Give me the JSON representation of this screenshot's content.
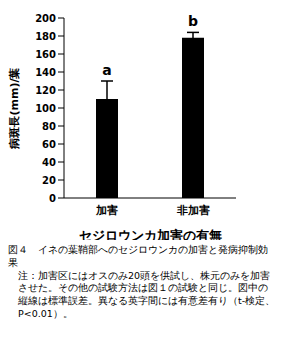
{
  "chart_data": {
    "type": "bar",
    "categories": [
      "加害",
      "非加害"
    ],
    "values": [
      110,
      178
    ],
    "errors": [
      20,
      6
    ],
    "color": "#000000",
    "annotations": [
      "a",
      "b"
    ],
    "ylabel": "病斑長(mm)/葉",
    "xlabel": "セジロウンカ加害の有無",
    "ylim": [
      0,
      200
    ],
    "yticks": [
      0,
      20,
      40,
      60,
      80,
      100,
      120,
      140,
      160,
      180,
      200
    ],
    "grid": false,
    "caption": "図４　イネの葉鞘部へのセジロウンカの加害と発病抑制効果",
    "note": "注：加害区にはオスのみ20頭を供試し、株元のみを加害させた。その他の試験方法は図１の試験と同じ。図中の縦線は標準誤差。異なる英字間には有意差有り（t-検定、P<0.01）。"
  }
}
